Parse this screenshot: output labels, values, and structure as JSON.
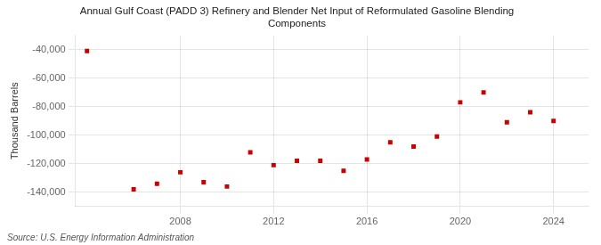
{
  "chart_data": {
    "type": "scatter",
    "title": "Annual Gulf Coast (PADD 3) Refinery and Blender Net Input of Reformulated Gasoline Blending\nComponents",
    "ylabel": "Thousand Barrels",
    "annotation": "Source: U.S. Energy Information Administration",
    "x": [
      2004,
      2006,
      2007,
      2008,
      2009,
      2010,
      2011,
      2012,
      2013,
      2014,
      2015,
      2016,
      2017,
      2018,
      2019,
      2020,
      2021,
      2022,
      2023,
      2024
    ],
    "values": [
      -41000,
      -138000,
      -134000,
      -126000,
      -133000,
      -136000,
      -112000,
      -121000,
      -118000,
      -118000,
      -125000,
      -117000,
      -105000,
      -108000,
      -101000,
      -77000,
      -70000,
      -91000,
      -84000,
      -90000
    ],
    "color": "#cc0000",
    "marker": "square",
    "xlim": [
      2003.5,
      2025.5
    ],
    "xticks": [
      2008,
      2012,
      2016,
      2020,
      2024
    ],
    "ylim": [
      -150000,
      -30000
    ],
    "yticks": [
      {
        "value": -140000,
        "label": "-140,000"
      },
      {
        "value": -120000,
        "label": "-120,000"
      },
      {
        "value": -100000,
        "label": "-100,000"
      },
      {
        "value": -80000,
        "label": "-80,000"
      },
      {
        "value": -60000,
        "label": "-60,000"
      },
      {
        "value": -40000,
        "label": "-40,000"
      }
    ],
    "grid": true
  }
}
